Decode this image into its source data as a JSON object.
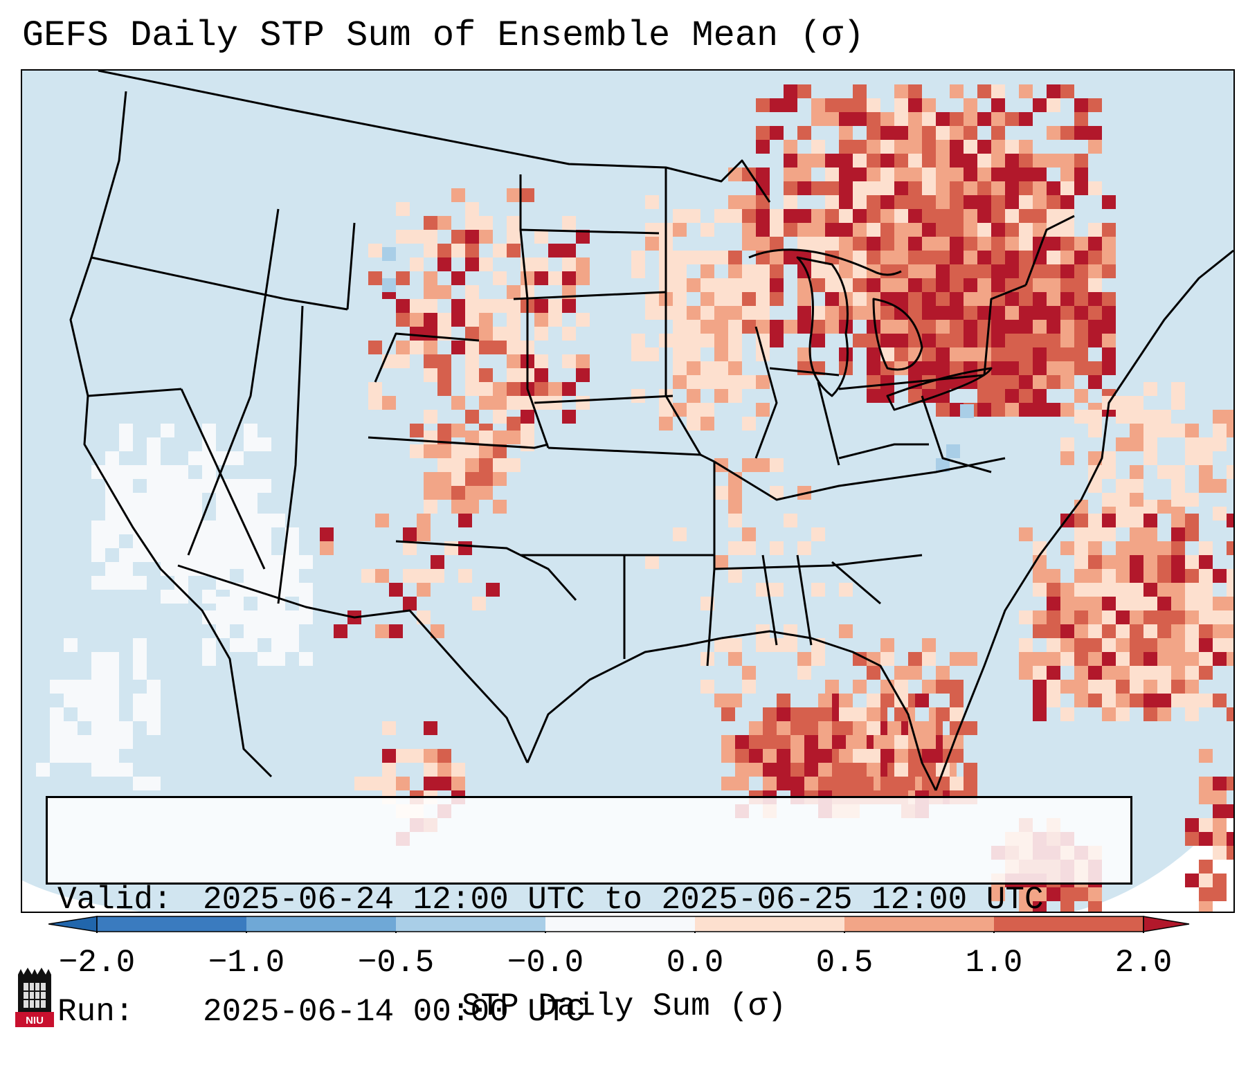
{
  "title": "GEFS Daily STP Sum of Ensemble Mean (σ)",
  "info": {
    "valid_label": "Valid:",
    "valid_value": "2025-06-24 12:00 UTC to 2025-06-25 12:00 UTC",
    "run_label": "Run:",
    "run_value": "2025-06-14 00:00 UTC"
  },
  "colorbar": {
    "label": "STP Daily Sum (σ)",
    "ticks": [
      "−2.0",
      "−1.0",
      "−0.5",
      "−0.0",
      "0.0",
      "0.5",
      "1.0",
      "2.0"
    ],
    "colors": [
      "#3a7bbf",
      "#6fa8d6",
      "#a9cee7",
      "#f7f9fb",
      "#fde0cf",
      "#f2a587",
      "#d6604d",
      "#b2182b"
    ],
    "extend_low_color": "#2166ac",
    "extend_high_color": "#b2182b"
  },
  "map": {
    "background_color": "#d1e5f0",
    "outside_color": "#ffffff",
    "region": "Continental United States"
  },
  "logo": {
    "text": "NIU"
  }
}
